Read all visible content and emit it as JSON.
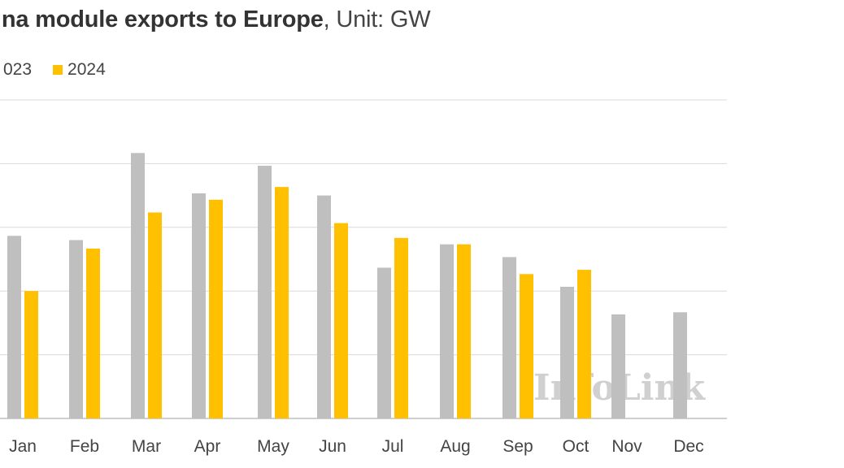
{
  "title": {
    "bold_text": "ina module exports to Europe",
    "light_text": ", Unit: GW"
  },
  "watermark": "InfoLink",
  "colors": {
    "series_2023": "#bfbfbf",
    "series_2024": "#ffc000",
    "grid": "#d9d9d9",
    "axis": "#bfbfbf"
  },
  "chart_data": {
    "type": "bar",
    "title": "ina module exports to Europe, Unit: GW",
    "categories": [
      "Jan",
      "Feb",
      "Mar",
      "Apr",
      "May",
      "Jun",
      "Jul",
      "Aug",
      "Sep",
      "Oct",
      "Nov",
      "Dec"
    ],
    "series": [
      {
        "name": "023",
        "color": "#bfbfbf",
        "values": [
          8.6,
          8.4,
          12.5,
          10.6,
          11.9,
          10.5,
          7.1,
          8.2,
          7.6,
          6.2,
          4.9,
          5.0
        ]
      },
      {
        "name": "2024",
        "color": "#ffc000",
        "values": [
          6.0,
          8.0,
          9.7,
          10.3,
          10.9,
          9.2,
          8.5,
          8.2,
          6.8,
          7.0,
          null,
          null
        ]
      }
    ],
    "ylim": [
      0,
      15
    ],
    "grid_step": 3,
    "grid": true,
    "legend_position": "top-left",
    "xlabel": "",
    "ylabel": ""
  }
}
